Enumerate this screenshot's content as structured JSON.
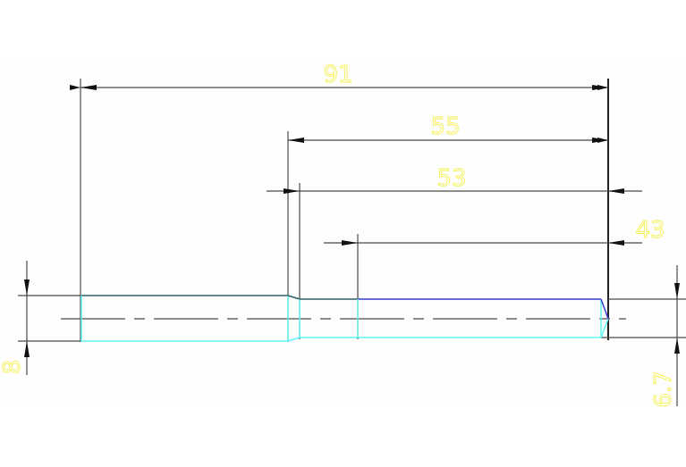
{
  "drawing": {
    "dimensions": {
      "overall_length": "91",
      "length_55": "55",
      "length_53": "53",
      "length_43": "43",
      "large_diameter": "8",
      "small_diameter": "6.7"
    },
    "colors": {
      "background": "#fdfefd",
      "dimension_line": "#4a4a4a",
      "dimension_text": "#f5f04a",
      "part_outline_cyan": "#5ff5f5",
      "part_outline_blue": "#3a3ad0",
      "part_outline_dark": "#2f5f66"
    }
  }
}
